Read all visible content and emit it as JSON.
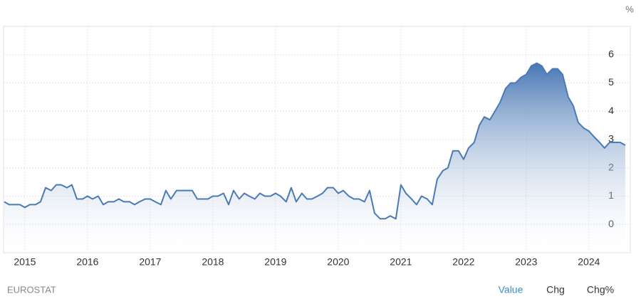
{
  "chart_data": {
    "type": "area",
    "unit": "%",
    "source": "EUROSTAT",
    "tabs": [
      "Value",
      "Chg",
      "Chg%"
    ],
    "color": "#4a7ab5",
    "grid": true,
    "xlim": [
      2014.66,
      2024.57
    ],
    "xticks": [
      2015,
      2016,
      2017,
      2018,
      2019,
      2020,
      2021,
      2022,
      2023,
      2024
    ],
    "ylim": [
      -1,
      7
    ],
    "yticks": [
      0,
      1,
      2,
      3,
      4,
      5,
      6
    ],
    "x": [
      2014.67,
      2014.75,
      2014.83,
      2014.92,
      2015.0,
      2015.08,
      2015.17,
      2015.25,
      2015.33,
      2015.42,
      2015.5,
      2015.58,
      2015.67,
      2015.75,
      2015.83,
      2015.92,
      2016.0,
      2016.08,
      2016.17,
      2016.25,
      2016.33,
      2016.42,
      2016.5,
      2016.58,
      2016.67,
      2016.75,
      2016.83,
      2016.92,
      2017.0,
      2017.08,
      2017.17,
      2017.25,
      2017.33,
      2017.42,
      2017.5,
      2017.58,
      2017.67,
      2017.75,
      2017.83,
      2017.92,
      2018.0,
      2018.08,
      2018.17,
      2018.25,
      2018.33,
      2018.42,
      2018.5,
      2018.58,
      2018.67,
      2018.75,
      2018.83,
      2018.92,
      2019.0,
      2019.08,
      2019.17,
      2019.25,
      2019.33,
      2019.42,
      2019.5,
      2019.58,
      2019.67,
      2019.75,
      2019.83,
      2019.92,
      2020.0,
      2020.08,
      2020.17,
      2020.25,
      2020.33,
      2020.42,
      2020.5,
      2020.58,
      2020.67,
      2020.75,
      2020.83,
      2020.92,
      2021.0,
      2021.08,
      2021.17,
      2021.25,
      2021.33,
      2021.42,
      2021.5,
      2021.58,
      2021.67,
      2021.75,
      2021.83,
      2021.92,
      2022.0,
      2022.08,
      2022.17,
      2022.25,
      2022.33,
      2022.42,
      2022.5,
      2022.58,
      2022.67,
      2022.75,
      2022.83,
      2022.92,
      2023.0,
      2023.08,
      2023.17,
      2023.25,
      2023.33,
      2023.42,
      2023.5,
      2023.58,
      2023.67,
      2023.75,
      2023.83,
      2023.92,
      2024.0,
      2024.08,
      2024.17,
      2024.25,
      2024.33,
      2024.42,
      2024.5,
      2024.58
    ],
    "values": [
      0.8,
      0.7,
      0.7,
      0.7,
      0.6,
      0.7,
      0.7,
      0.8,
      1.3,
      1.2,
      1.4,
      1.4,
      1.3,
      1.4,
      0.9,
      0.9,
      1.0,
      0.9,
      1.0,
      0.7,
      0.8,
      0.8,
      0.9,
      0.8,
      0.8,
      0.7,
      0.8,
      0.9,
      0.9,
      0.8,
      0.7,
      1.2,
      0.9,
      1.2,
      1.2,
      1.2,
      1.2,
      0.9,
      0.9,
      0.9,
      1.0,
      1.0,
      1.1,
      0.7,
      1.2,
      0.9,
      1.1,
      1.0,
      0.9,
      1.1,
      1.0,
      1.0,
      1.1,
      1.0,
      0.8,
      1.3,
      0.8,
      1.1,
      0.9,
      0.9,
      1.0,
      1.1,
      1.3,
      1.3,
      1.1,
      1.2,
      1.0,
      0.9,
      0.9,
      0.8,
      1.2,
      0.4,
      0.2,
      0.2,
      0.3,
      0.2,
      1.4,
      1.1,
      0.9,
      0.7,
      1.0,
      0.9,
      0.7,
      1.6,
      1.9,
      2.0,
      2.6,
      2.6,
      2.3,
      2.7,
      2.9,
      3.5,
      3.8,
      3.7,
      4.0,
      4.3,
      4.8,
      5.0,
      5.0,
      5.2,
      5.3,
      5.6,
      5.7,
      5.6,
      5.3,
      5.5,
      5.5,
      5.3,
      4.5,
      4.2,
      3.6,
      3.4,
      3.3,
      3.1,
      2.9,
      2.7,
      2.9,
      2.9,
      2.9,
      2.8
    ]
  }
}
